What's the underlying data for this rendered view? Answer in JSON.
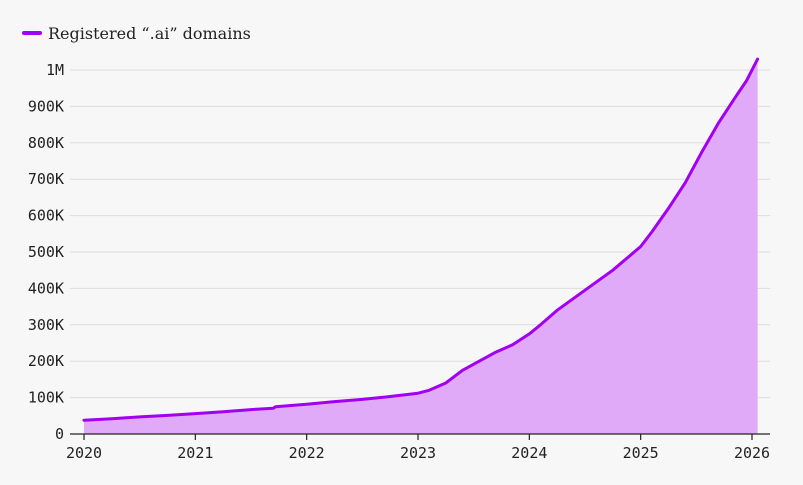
{
  "legend": {
    "label": "Registered “.ai” domains",
    "color": "#a100f2"
  },
  "chart_data": {
    "type": "area",
    "title": "",
    "xlabel": "",
    "ylabel": "",
    "xlim": [
      2020,
      2026
    ],
    "ylim": [
      0,
      1000000
    ],
    "grid": true,
    "legend_position": "top-left",
    "line_color": "#a100f2",
    "fill_color": "#e0aaf8",
    "y_ticks": [
      {
        "value": 0,
        "label": "0"
      },
      {
        "value": 100000,
        "label": "100K"
      },
      {
        "value": 200000,
        "label": "200K"
      },
      {
        "value": 300000,
        "label": "300K"
      },
      {
        "value": 400000,
        "label": "400K"
      },
      {
        "value": 500000,
        "label": "500K"
      },
      {
        "value": 600000,
        "label": "600K"
      },
      {
        "value": 700000,
        "label": "700K"
      },
      {
        "value": 800000,
        "label": "800K"
      },
      {
        "value": 900000,
        "label": "900K"
      },
      {
        "value": 1000000,
        "label": "1M"
      }
    ],
    "x_ticks": [
      {
        "value": 2020,
        "label": "2020"
      },
      {
        "value": 2021,
        "label": "2021"
      },
      {
        "value": 2022,
        "label": "2022"
      },
      {
        "value": 2023,
        "label": "2023"
      },
      {
        "value": 2024,
        "label": "2024"
      },
      {
        "value": 2025,
        "label": "2025"
      },
      {
        "value": 2026,
        "label": "2026"
      }
    ],
    "series": [
      {
        "name": "Registered “.ai” domains",
        "x": [
          2020.0,
          2020.25,
          2020.5,
          2020.75,
          2021.0,
          2021.25,
          2021.5,
          2021.7,
          2021.72,
          2022.0,
          2022.25,
          2022.5,
          2022.75,
          2023.0,
          2023.1,
          2023.25,
          2023.4,
          2023.55,
          2023.7,
          2023.85,
          2024.0,
          2024.1,
          2024.25,
          2024.5,
          2024.75,
          2025.0,
          2025.1,
          2025.25,
          2025.4,
          2025.55,
          2025.7,
          2025.85,
          2025.95,
          2026.05
        ],
        "y": [
          38000,
          42000,
          47000,
          51000,
          56000,
          61000,
          67000,
          71000,
          75000,
          82000,
          89000,
          95000,
          103000,
          112000,
          120000,
          140000,
          175000,
          200000,
          225000,
          245000,
          275000,
          300000,
          340000,
          395000,
          450000,
          515000,
          555000,
          620000,
          690000,
          775000,
          855000,
          925000,
          970000,
          1030000
        ]
      }
    ]
  }
}
